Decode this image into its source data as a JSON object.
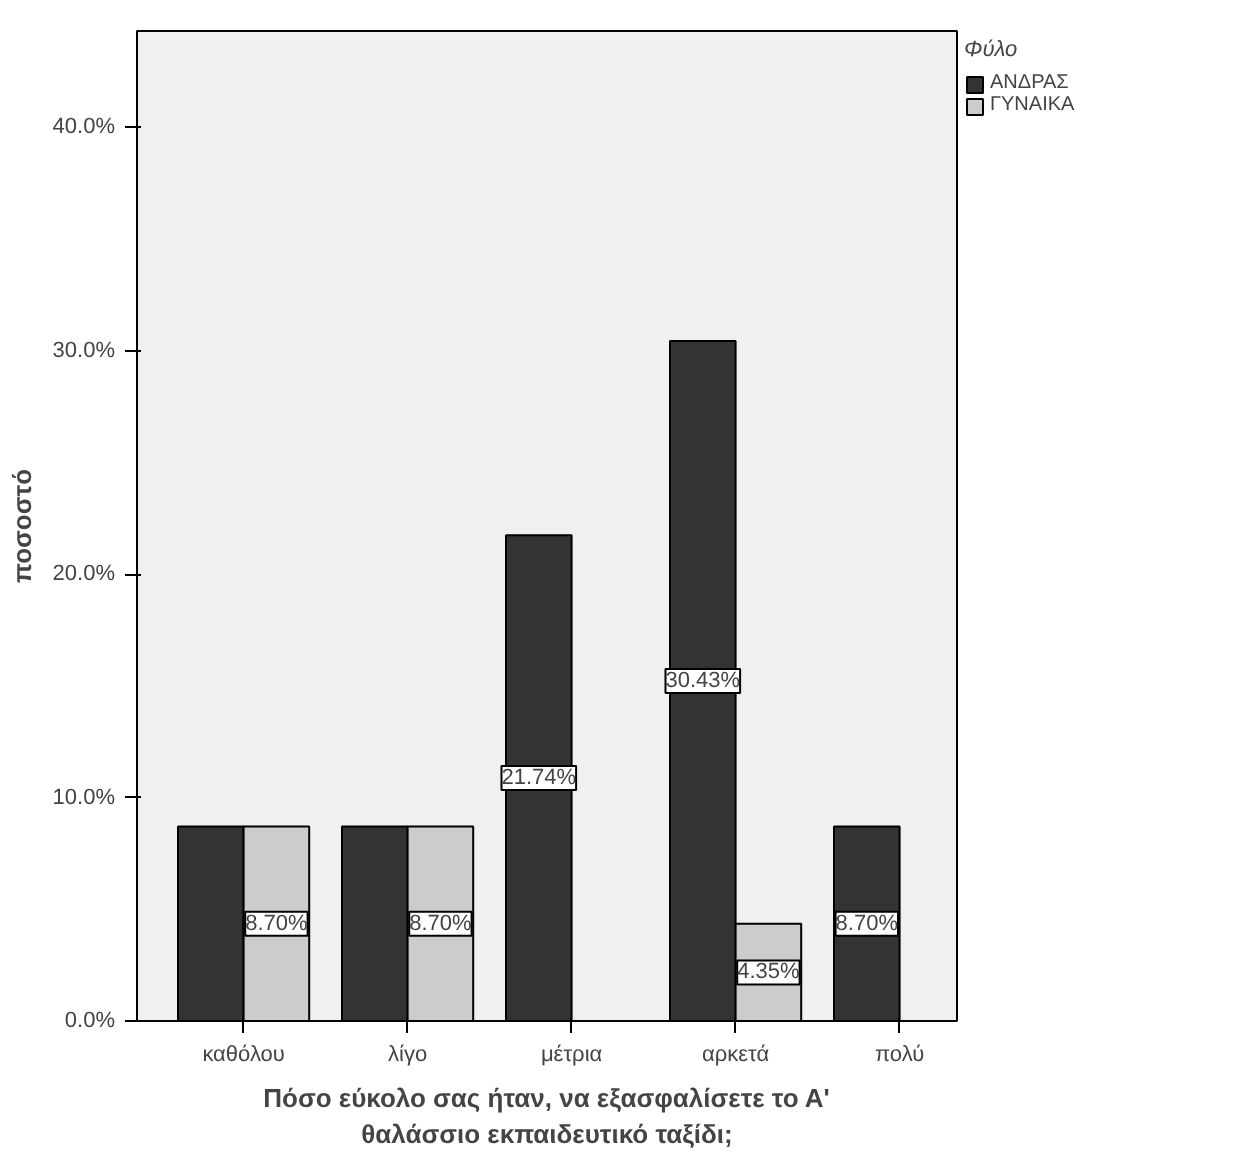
{
  "chart_data": {
    "type": "bar",
    "xlabel": "Πόσο εύκολο σας ήταν, να εξασφαλίσετε το Α'\nθαλάσσιο εκπαιδευτικό ταξίδι;",
    "ylabel": "ποσοστό",
    "legend_title": "Φύλο",
    "categories": [
      "καθόλου",
      "λίγο",
      "μέτρια",
      "αρκετά",
      "πολύ"
    ],
    "series": [
      {
        "name": "ΑΝΔΡΑΣ",
        "color": "#333333",
        "values": [
          8.7,
          8.7,
          21.74,
          30.43,
          8.7
        ],
        "value_labels": [
          null,
          null,
          "21.74%",
          "30.43%",
          "8.70%"
        ]
      },
      {
        "name": "ΓΥΝΑΙΚΑ",
        "color": "#cccccc",
        "values": [
          8.7,
          8.7,
          null,
          4.35,
          null
        ],
        "value_labels": [
          "8.70%",
          "8.70%",
          null,
          "4.35%",
          null
        ]
      }
    ],
    "ylim": [
      0,
      44.3
    ],
    "yticks": [
      {
        "value": 0,
        "label": "0.0%"
      },
      {
        "value": 10,
        "label": "10.0%"
      },
      {
        "value": 20,
        "label": "20.0%"
      },
      {
        "value": 30,
        "label": "30.0%"
      },
      {
        "value": 40,
        "label": "40.0%"
      }
    ],
    "grid": false,
    "legend": "right"
  }
}
